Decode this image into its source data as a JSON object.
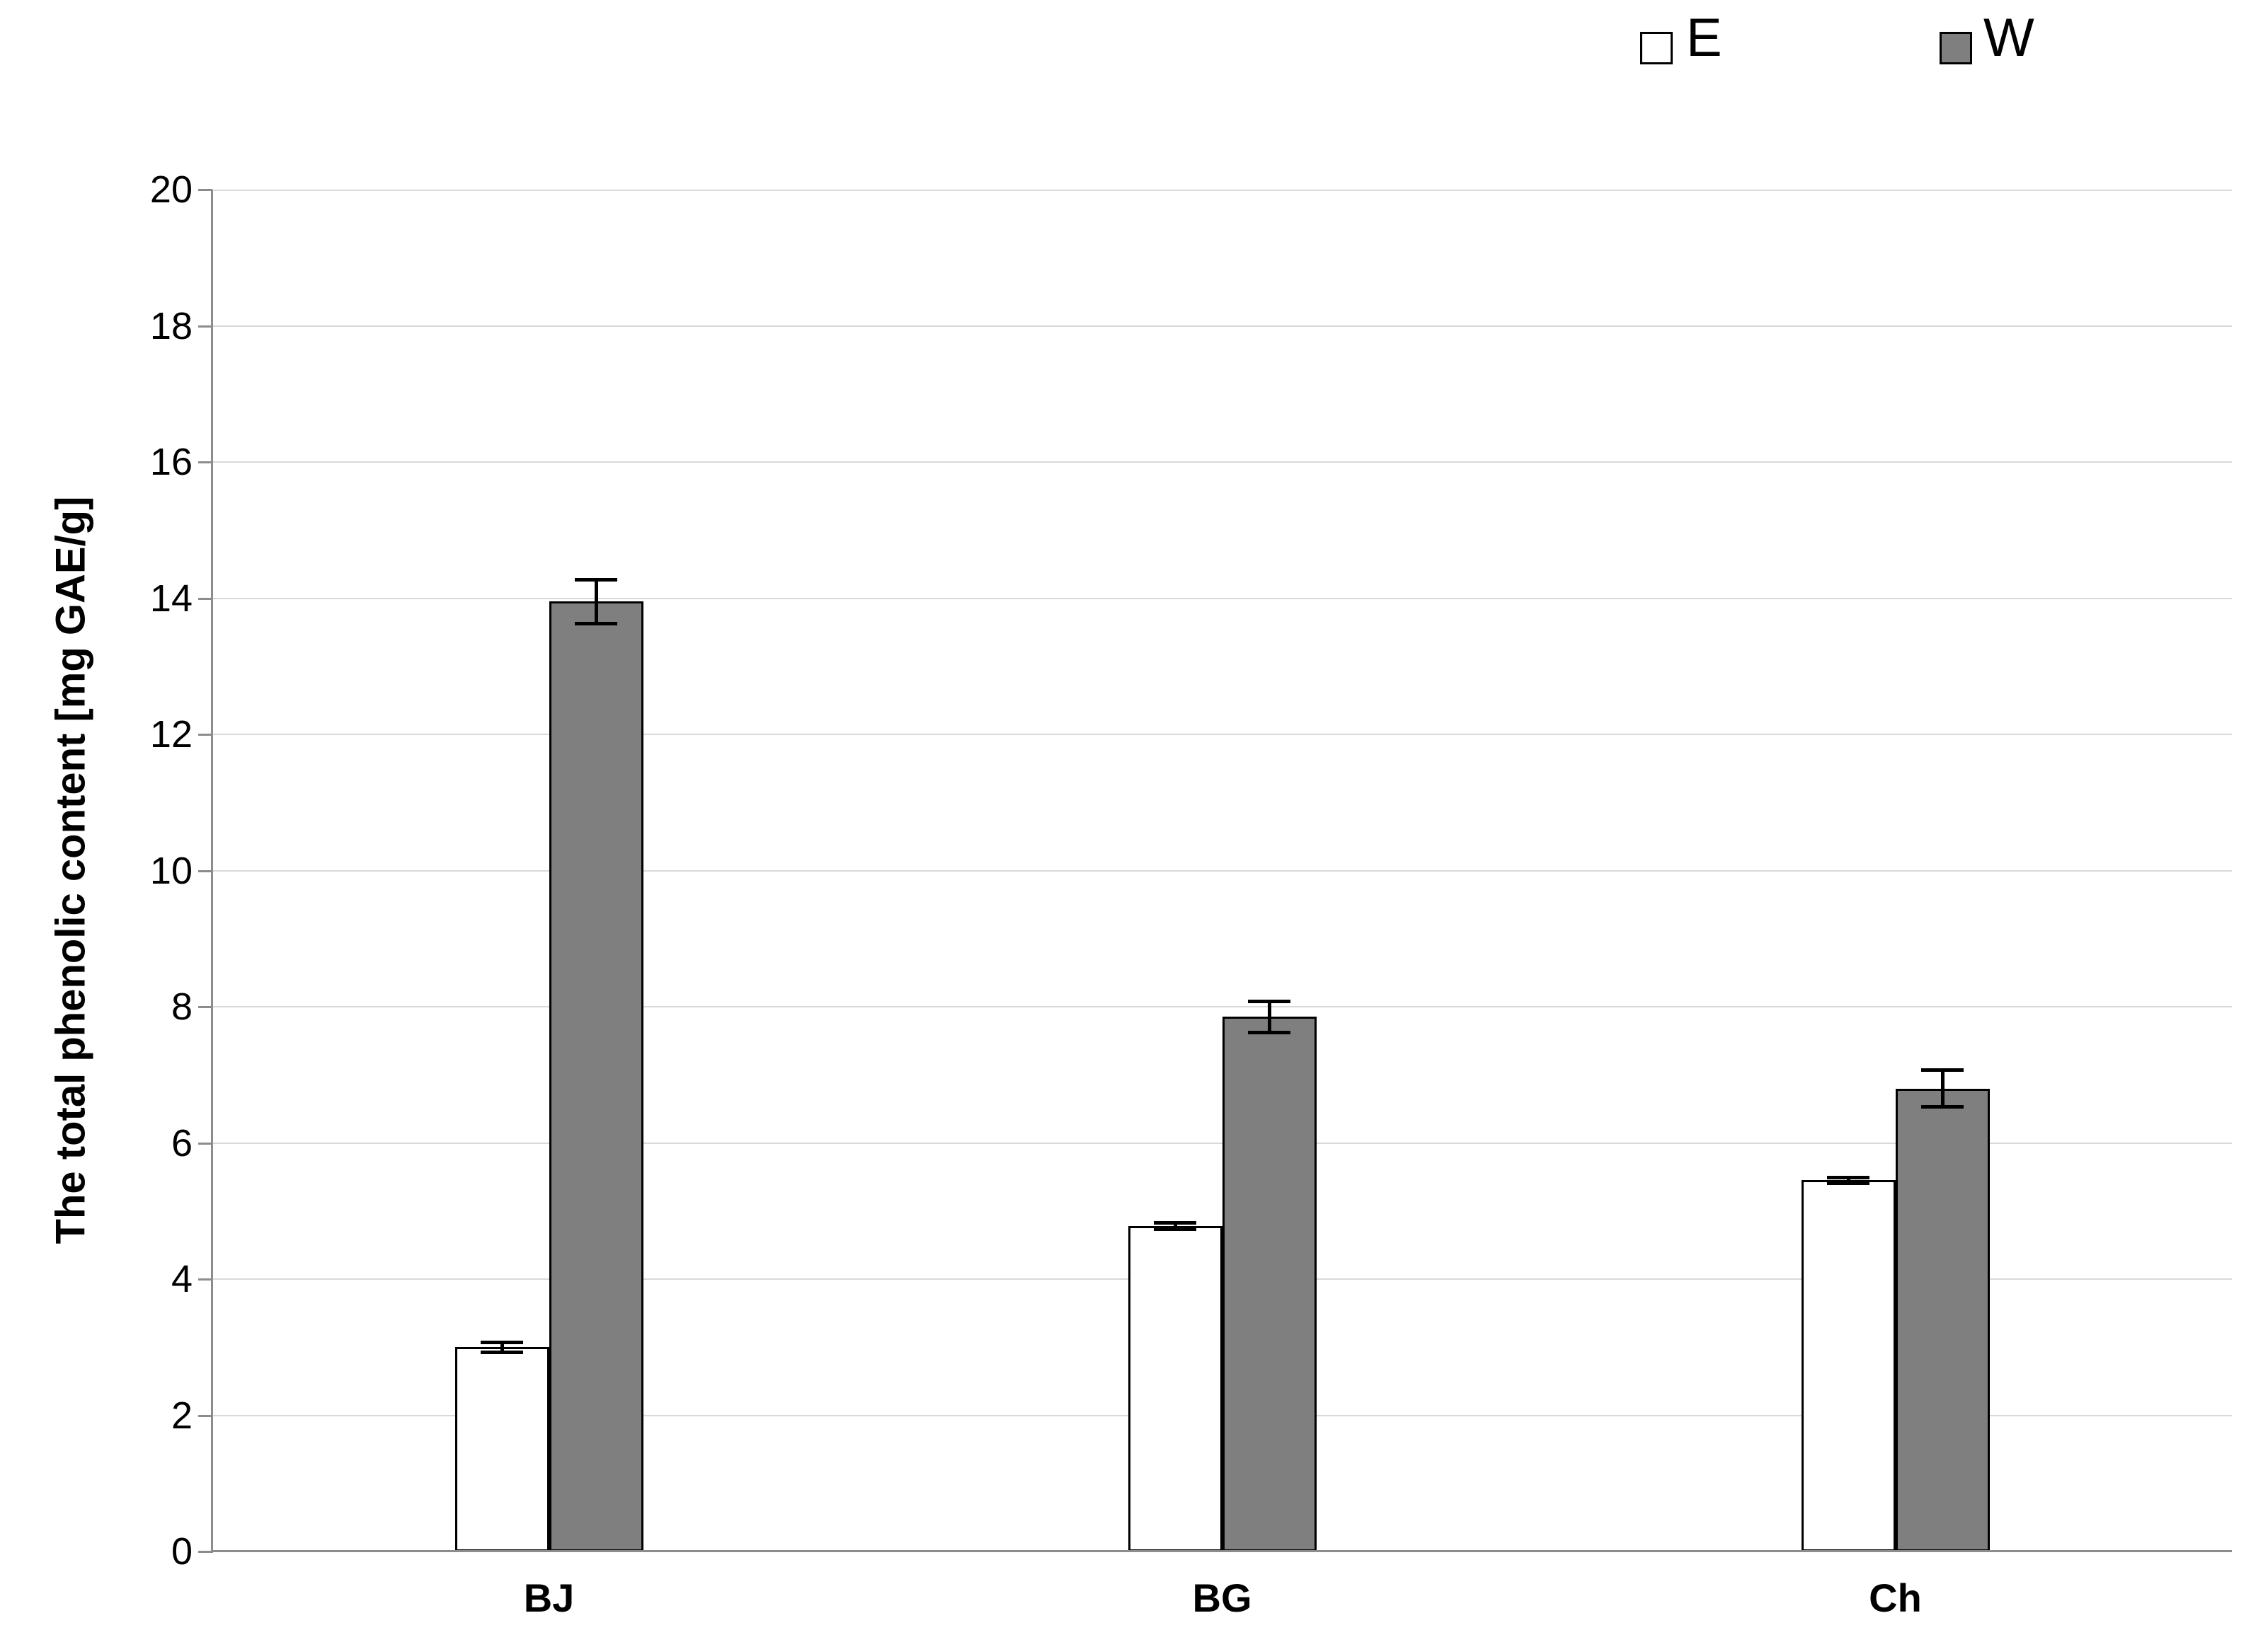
{
  "page": {
    "background": "#ffffff"
  },
  "legend": {
    "position": "top-right",
    "items": [
      {
        "label": "E",
        "fill": "#ffffff",
        "border": "#000000"
      },
      {
        "label": "W",
        "fill": "#7f7f7f",
        "border": "#000000"
      }
    ]
  },
  "chart_data": {
    "type": "bar",
    "title": "",
    "xlabel": "",
    "ylabel": "The total phenolic content [mg GAE/g]",
    "categories": [
      "BJ",
      "BG",
      "Ch"
    ],
    "series": [
      {
        "name": "E",
        "fill": "#ffffff",
        "border": "#000000",
        "values": [
          3.0,
          4.78,
          5.45
        ],
        "errors": [
          0.1,
          0.07,
          0.07
        ]
      },
      {
        "name": "W",
        "fill": "#7f7f7f",
        "border": "#000000",
        "values": [
          13.95,
          7.85,
          6.8
        ],
        "errors": [
          0.35,
          0.25,
          0.3
        ]
      }
    ],
    "ylim": [
      0,
      20
    ],
    "ytick_step": 2,
    "grid": true,
    "legend_position": "top-right",
    "error_bars": true,
    "colors": {
      "gridline": "#d9d9d9",
      "axis": "#8c8c8c",
      "text": "#000000",
      "error_bar": "#000000",
      "background": "#ffffff"
    }
  }
}
